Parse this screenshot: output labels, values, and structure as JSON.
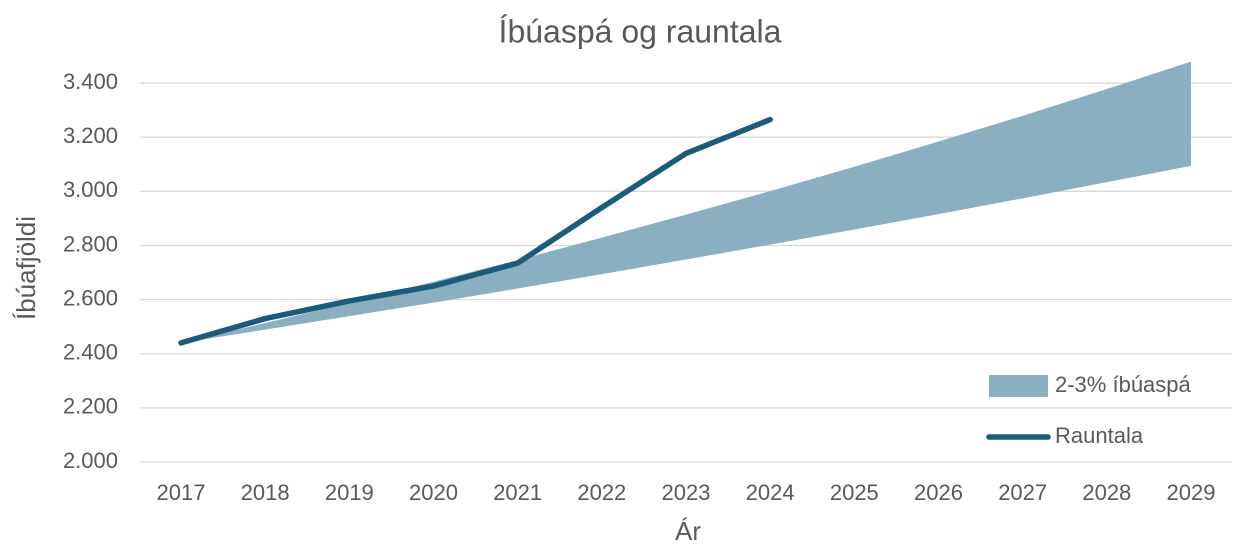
{
  "chart_data": {
    "type": "line",
    "title": "Íbúaspá og rauntala",
    "x_label": "Ár",
    "y_label": "Íbúafjöldi",
    "categories": [
      "2017",
      "2018",
      "2019",
      "2020",
      "2021",
      "2022",
      "2023",
      "2024",
      "2025",
      "2026",
      "2027",
      "2028",
      "2029"
    ],
    "series": [
      {
        "name": "2-3% íbúaspá",
        "color": "#8aafc0",
        "kind": "band",
        "low": [
          2440,
          2489,
          2539,
          2589,
          2641,
          2694,
          2748,
          2803,
          2859,
          2916,
          2974,
          3034,
          3094
        ],
        "high": [
          2440,
          2513,
          2589,
          2666,
          2746,
          2829,
          2914,
          3001,
          3091,
          3184,
          3279,
          3378,
          3479
        ]
      },
      {
        "name": "Rauntala",
        "color": "#1b5b7c",
        "kind": "line",
        "values": [
          2440,
          2530,
          2595,
          2650,
          2735,
          2940,
          3140,
          3265,
          null,
          null,
          null,
          null,
          null
        ]
      }
    ],
    "ylim": [
      2000,
      3500
    ],
    "yticks": [
      {
        "value": 2000,
        "label": "2.000"
      },
      {
        "value": 2200,
        "label": "2.200"
      },
      {
        "value": 2400,
        "label": "2.400"
      },
      {
        "value": 2600,
        "label": "2.600"
      },
      {
        "value": 2800,
        "label": "2.800"
      },
      {
        "value": 3000,
        "label": "3.000"
      },
      {
        "value": 3200,
        "label": "3.200"
      },
      {
        "value": 3400,
        "label": "3.400"
      }
    ],
    "grid": true,
    "legend": "lower right"
  }
}
